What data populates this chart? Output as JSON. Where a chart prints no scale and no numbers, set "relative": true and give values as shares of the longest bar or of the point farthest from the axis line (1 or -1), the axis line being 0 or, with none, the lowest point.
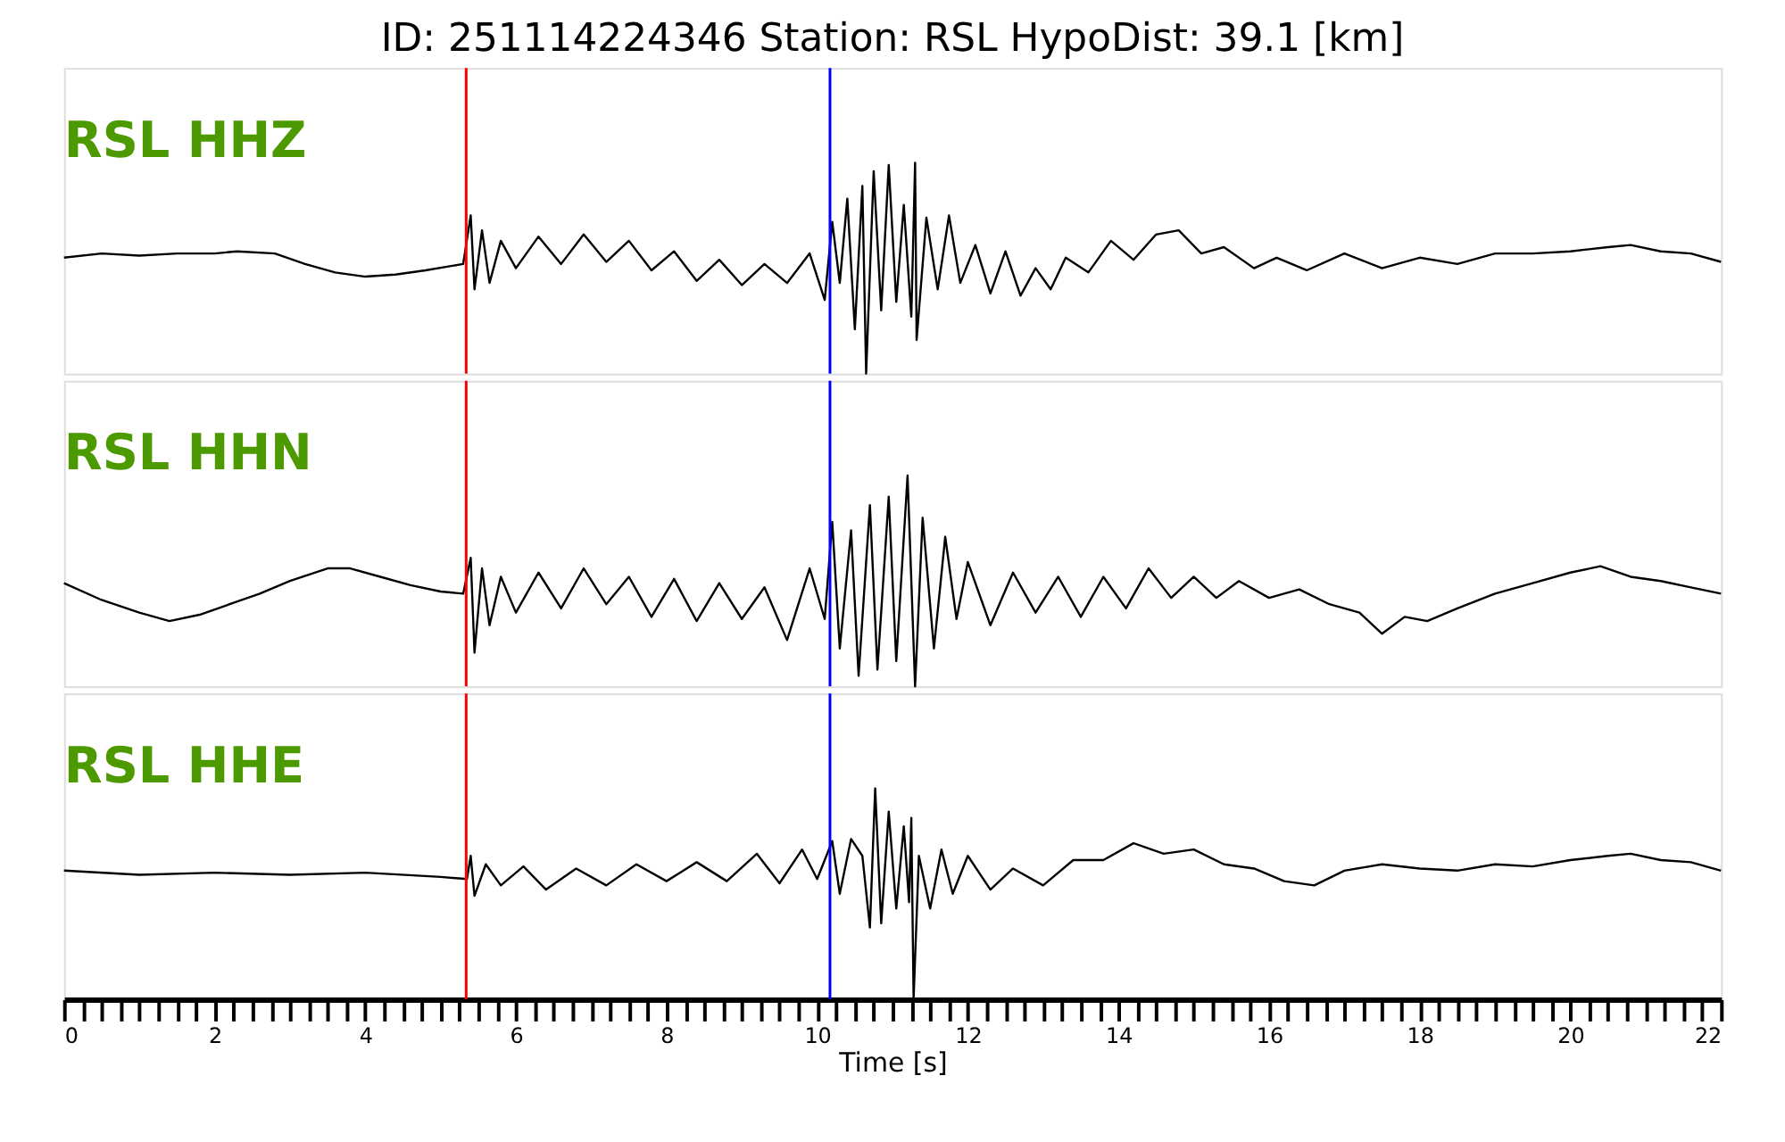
{
  "chart_data": [
    {
      "type": "line",
      "title": "ID: 251114224346   Station: RSL   HypoDist:    39.1 [km]",
      "relative": true,
      "xlim": [
        0,
        22
      ],
      "tick_labels": false,
      "x": [
        0,
        0.5,
        1,
        1.5,
        2,
        2.3,
        2.8,
        3.2,
        3.6,
        4,
        4.4,
        4.8,
        5.3,
        5.4,
        5.45,
        5.55,
        5.65,
        5.8,
        6,
        6.3,
        6.6,
        6.9,
        7.2,
        7.5,
        7.8,
        8.1,
        8.4,
        8.7,
        9,
        9.3,
        9.6,
        9.9,
        10.1,
        10.2,
        10.3,
        10.4,
        10.5,
        10.6,
        10.65,
        10.75,
        10.85,
        10.95,
        11.05,
        11.15,
        11.25,
        11.3,
        11.32,
        11.45,
        11.6,
        11.75,
        11.9,
        12.1,
        12.3,
        12.5,
        12.7,
        12.9,
        13.1,
        13.3,
        13.6,
        13.9,
        14.2,
        14.5,
        14.8,
        15.1,
        15.4,
        15.8,
        16.1,
        16.5,
        17,
        17.5,
        18,
        18.5,
        19,
        19.5,
        20,
        20.5,
        20.8,
        21.2,
        21.6,
        22
      ],
      "series": [
        {
          "name": "RSL HHZ",
          "color": "#000000",
          "values": [
            0.55,
            0.57,
            0.56,
            0.57,
            0.57,
            0.58,
            0.57,
            0.52,
            0.48,
            0.46,
            0.47,
            0.49,
            0.52,
            0.75,
            0.4,
            0.68,
            0.43,
            0.63,
            0.5,
            0.65,
            0.52,
            0.66,
            0.53,
            0.63,
            0.49,
            0.58,
            0.44,
            0.54,
            0.42,
            0.52,
            0.43,
            0.57,
            0.35,
            0.72,
            0.43,
            0.83,
            0.21,
            0.89,
            0,
            0.96,
            0.3,
            0.99,
            0.34,
            0.8,
            0.27,
            1,
            0.16,
            0.74,
            0.4,
            0.75,
            0.43,
            0.61,
            0.38,
            0.58,
            0.37,
            0.5,
            0.4,
            0.55,
            0.48,
            0.63,
            0.54,
            0.66,
            0.68,
            0.57,
            0.6,
            0.5,
            0.55,
            0.49,
            0.57,
            0.5,
            0.55,
            0.52,
            0.57,
            0.57,
            0.58,
            0.6,
            0.61,
            0.58,
            0.57,
            0.53
          ]
        }
      ],
      "ref_lines": [
        {
          "axis": "x",
          "value": 5.34,
          "color": "#ff0000"
        },
        {
          "axis": "x",
          "value": 10.17,
          "color": "#0000ff"
        }
      ]
    },
    {
      "type": "line",
      "relative": true,
      "xlim": [
        0,
        22
      ],
      "tick_labels": false,
      "x": [
        0,
        0.5,
        1,
        1.4,
        1.8,
        2.2,
        2.6,
        3,
        3.5,
        3.8,
        4.2,
        4.6,
        5,
        5.3,
        5.4,
        5.45,
        5.55,
        5.65,
        5.8,
        6,
        6.3,
        6.6,
        6.9,
        7.2,
        7.5,
        7.8,
        8.1,
        8.4,
        8.7,
        9,
        9.3,
        9.6,
        9.9,
        10.1,
        10.2,
        10.3,
        10.45,
        10.55,
        10.7,
        10.8,
        10.95,
        11.05,
        11.2,
        11.3,
        11.4,
        11.55,
        11.7,
        11.85,
        12,
        12.3,
        12.6,
        12.9,
        13.2,
        13.5,
        13.8,
        14.1,
        14.4,
        14.7,
        15,
        15.3,
        15.6,
        16,
        16.4,
        16.8,
        17.2,
        17.5,
        17.8,
        18.1,
        18.5,
        19,
        19.5,
        20,
        20.4,
        20.8,
        21.2,
        21.6,
        22
      ],
      "series": [
        {
          "name": "RSL HHN",
          "color": "#000000",
          "values": [
            0.49,
            0.41,
            0.35,
            0.31,
            0.34,
            0.39,
            0.44,
            0.5,
            0.56,
            0.56,
            0.52,
            0.48,
            0.45,
            0.44,
            0.61,
            0.16,
            0.56,
            0.29,
            0.52,
            0.35,
            0.54,
            0.37,
            0.56,
            0.39,
            0.52,
            0.33,
            0.51,
            0.31,
            0.49,
            0.32,
            0.47,
            0.22,
            0.56,
            0.32,
            0.78,
            0.18,
            0.74,
            0.05,
            0.86,
            0.08,
            0.9,
            0.12,
            1,
            0,
            0.8,
            0.18,
            0.71,
            0.32,
            0.59,
            0.29,
            0.54,
            0.35,
            0.52,
            0.33,
            0.52,
            0.37,
            0.56,
            0.42,
            0.52,
            0.42,
            0.5,
            0.42,
            0.46,
            0.39,
            0.35,
            0.25,
            0.33,
            0.31,
            0.37,
            0.44,
            0.49,
            0.54,
            0.57,
            0.52,
            0.5,
            0.47,
            0.44
          ]
        }
      ],
      "ref_lines": [
        {
          "axis": "x",
          "value": 5.34,
          "color": "#ff0000"
        },
        {
          "axis": "x",
          "value": 10.17,
          "color": "#0000ff"
        }
      ]
    },
    {
      "type": "line",
      "relative": true,
      "xlim": [
        0,
        22
      ],
      "tick_labels": "x",
      "xlabel": "Time [s]",
      "xticks": [
        0,
        {
          "value": 0.25,
          "label": null
        },
        {
          "value": 0.5,
          "label": null
        },
        {
          "value": 0.75,
          "label": null
        },
        {
          "value": 1,
          "label": null
        },
        {
          "value": 1.25,
          "label": null
        },
        {
          "value": 1.5,
          "label": null
        },
        {
          "value": 1.75,
          "label": null
        },
        2,
        {
          "value": 2.25,
          "label": null
        },
        {
          "value": 2.5,
          "label": null
        },
        {
          "value": 2.75,
          "label": null
        },
        {
          "value": 3,
          "label": null
        },
        {
          "value": 3.25,
          "label": null
        },
        {
          "value": 3.5,
          "label": null
        },
        {
          "value": 3.75,
          "label": null
        },
        4,
        {
          "value": 4.25,
          "label": null
        },
        {
          "value": 4.5,
          "label": null
        },
        {
          "value": 4.75,
          "label": null
        },
        {
          "value": 5,
          "label": null
        },
        {
          "value": 5.25,
          "label": null
        },
        {
          "value": 5.5,
          "label": null
        },
        {
          "value": 5.75,
          "label": null
        },
        6,
        {
          "value": 6.25,
          "label": null
        },
        {
          "value": 6.5,
          "label": null
        },
        {
          "value": 6.75,
          "label": null
        },
        {
          "value": 7,
          "label": null
        },
        {
          "value": 7.25,
          "label": null
        },
        {
          "value": 7.5,
          "label": null
        },
        {
          "value": 7.75,
          "label": null
        },
        8,
        {
          "value": 8.25,
          "label": null
        },
        {
          "value": 8.5,
          "label": null
        },
        {
          "value": 8.75,
          "label": null
        },
        {
          "value": 9,
          "label": null
        },
        {
          "value": 9.25,
          "label": null
        },
        {
          "value": 9.5,
          "label": null
        },
        {
          "value": 9.75,
          "label": null
        },
        10,
        {
          "value": 10.25,
          "label": null
        },
        {
          "value": 10.5,
          "label": null
        },
        {
          "value": 10.75,
          "label": null
        },
        {
          "value": 11,
          "label": null
        },
        {
          "value": 11.25,
          "label": null
        },
        {
          "value": 11.5,
          "label": null
        },
        {
          "value": 11.75,
          "label": null
        },
        12,
        {
          "value": 12.25,
          "label": null
        },
        {
          "value": 12.5,
          "label": null
        },
        {
          "value": 12.75,
          "label": null
        },
        {
          "value": 13,
          "label": null
        },
        {
          "value": 13.25,
          "label": null
        },
        {
          "value": 13.5,
          "label": null
        },
        {
          "value": 13.75,
          "label": null
        },
        14,
        {
          "value": 14.25,
          "label": null
        },
        {
          "value": 14.5,
          "label": null
        },
        {
          "value": 14.75,
          "label": null
        },
        {
          "value": 15,
          "label": null
        },
        {
          "value": 15.25,
          "label": null
        },
        {
          "value": 15.5,
          "label": null
        },
        {
          "value": 15.75,
          "label": null
        },
        16,
        {
          "value": 16.25,
          "label": null
        },
        {
          "value": 16.5,
          "label": null
        },
        {
          "value": 16.75,
          "label": null
        },
        {
          "value": 17,
          "label": null
        },
        {
          "value": 17.25,
          "label": null
        },
        {
          "value": 17.5,
          "label": null
        },
        {
          "value": 17.75,
          "label": null
        },
        18,
        {
          "value": 18.25,
          "label": null
        },
        {
          "value": 18.5,
          "label": null
        },
        {
          "value": 18.75,
          "label": null
        },
        {
          "value": 19,
          "label": null
        },
        {
          "value": 19.25,
          "label": null
        },
        {
          "value": 19.5,
          "label": null
        },
        {
          "value": 19.75,
          "label": null
        },
        20,
        {
          "value": 20.25,
          "label": null
        },
        {
          "value": 20.5,
          "label": null
        },
        {
          "value": 20.75,
          "label": null
        },
        {
          "value": 21,
          "label": null
        },
        {
          "value": 21.25,
          "label": null
        },
        {
          "value": 21.5,
          "label": null
        },
        {
          "value": 21.75,
          "label": null
        },
        22
      ],
      "x": [
        0,
        1,
        2,
        3,
        4,
        5,
        5.35,
        5.4,
        5.45,
        5.6,
        5.8,
        6.1,
        6.4,
        6.8,
        7.2,
        7.6,
        8,
        8.4,
        8.8,
        9.2,
        9.5,
        9.8,
        10,
        10.2,
        10.3,
        10.45,
        10.6,
        10.7,
        10.77,
        10.85,
        10.95,
        11.05,
        11.15,
        11.22,
        11.25,
        11.28,
        11.35,
        11.5,
        11.65,
        11.8,
        12,
        12.3,
        12.6,
        13,
        13.4,
        13.8,
        14.2,
        14.6,
        15,
        15.4,
        15.8,
        16.2,
        16.6,
        17,
        17.5,
        18,
        18.5,
        19,
        19.5,
        20,
        20.5,
        20.8,
        21.2,
        21.6,
        22
      ],
      "series": [
        {
          "name": "RSL HHE",
          "color": "#000000",
          "values": [
            0.61,
            0.59,
            0.6,
            0.59,
            0.6,
            0.58,
            0.57,
            0.68,
            0.49,
            0.64,
            0.54,
            0.63,
            0.52,
            0.62,
            0.54,
            0.64,
            0.56,
            0.65,
            0.56,
            0.69,
            0.55,
            0.71,
            0.57,
            0.75,
            0.5,
            0.76,
            0.68,
            0.34,
            1,
            0.36,
            0.89,
            0.43,
            0.82,
            0.46,
            0.86,
            0,
            0.68,
            0.43,
            0.71,
            0.5,
            0.68,
            0.52,
            0.62,
            0.54,
            0.66,
            0.66,
            0.74,
            0.69,
            0.71,
            0.64,
            0.62,
            0.56,
            0.54,
            0.61,
            0.64,
            0.62,
            0.61,
            0.64,
            0.63,
            0.66,
            0.68,
            0.69,
            0.66,
            0.65,
            0.61
          ]
        }
      ],
      "ref_lines": [
        {
          "axis": "x",
          "value": 5.34,
          "color": "#ff0000"
        },
        {
          "axis": "x",
          "value": 10.17,
          "color": "#0000ff"
        }
      ]
    }
  ]
}
